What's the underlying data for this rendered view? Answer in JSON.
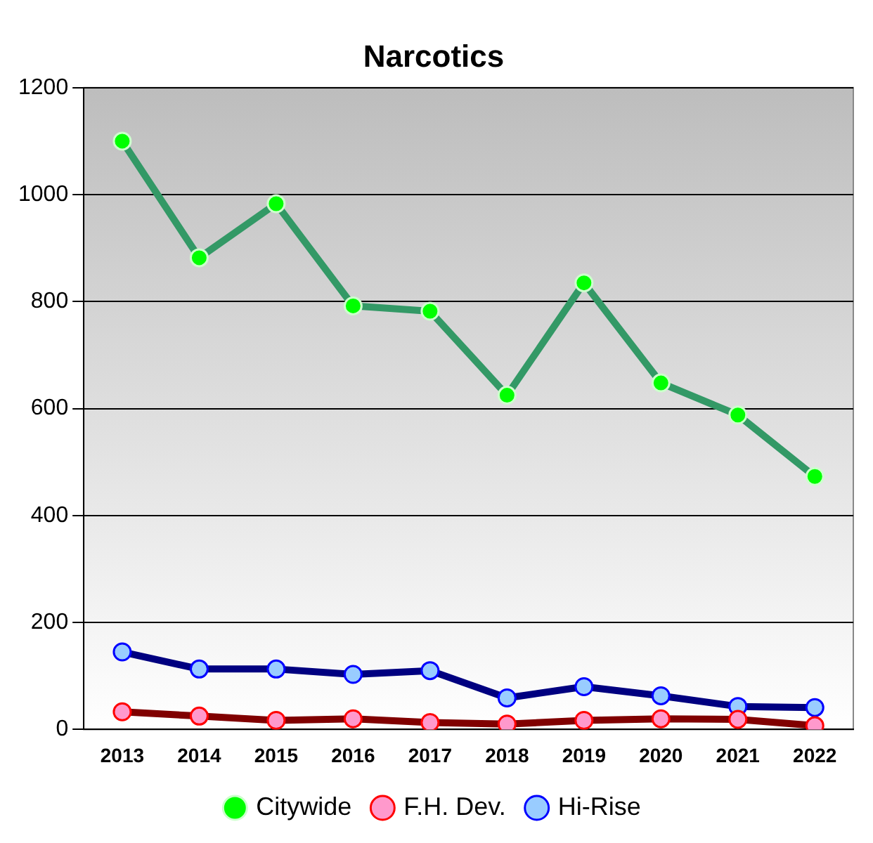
{
  "chart_data": {
    "type": "line",
    "title": "Narcotics",
    "categories": [
      "2013",
      "2014",
      "2015",
      "2016",
      "2017",
      "2018",
      "2019",
      "2020",
      "2021",
      "2022"
    ],
    "series": [
      {
        "name": "Citywide",
        "color": "#339966",
        "values": [
          1100,
          882,
          983,
          792,
          782,
          625,
          835,
          648,
          588,
          473
        ]
      },
      {
        "name": "F.H. Dev.",
        "color": "#800000",
        "values": [
          33,
          25,
          17,
          20,
          13,
          10,
          17,
          20,
          19,
          7
        ]
      },
      {
        "name": "Hi-Rise",
        "color": "#000080",
        "values": [
          145,
          113,
          113,
          103,
          110,
          59,
          80,
          63,
          43,
          41
        ]
      }
    ],
    "ylim": [
      0,
      1200
    ],
    "yticks": [
      0,
      200,
      400,
      600,
      800,
      1000,
      1200
    ],
    "grid": "y",
    "legend": "bottom",
    "marker": "circle",
    "line_style": "solid"
  }
}
